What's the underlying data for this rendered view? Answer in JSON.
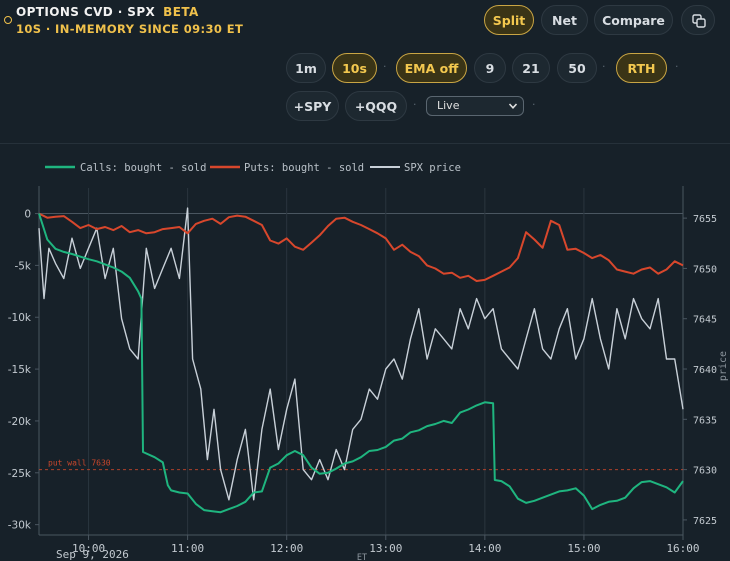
{
  "header": {
    "title": "OPTIONS CVD · SPX",
    "badge": "BETA",
    "subtitle": "10S · IN-MEMORY SINCE 09:30 ET"
  },
  "view_buttons": [
    {
      "label": "Split",
      "active": true
    },
    {
      "label": "Net",
      "active": false
    },
    {
      "label": "Compare",
      "active": false
    }
  ],
  "controls": {
    "timeframes": [
      {
        "label": "1m",
        "active": false
      },
      {
        "label": "10s",
        "active": true
      }
    ],
    "ema_toggle": {
      "label": "EMA off",
      "active": true
    },
    "ema_periods": [
      "9",
      "21",
      "50"
    ],
    "session": {
      "label": "RTH",
      "active": true
    },
    "overlays": [
      "+SPY",
      "+QQQ"
    ],
    "mode_select": {
      "value": "Live"
    }
  },
  "colors": {
    "calls": "#1fb57f",
    "puts": "#d8472c",
    "price": "#c8d0d8",
    "wall": "#c8472c",
    "accent": "#f0c14b"
  },
  "chart_data": {
    "type": "line",
    "x_ticks": [
      "10:00",
      "11:00",
      "12:00",
      "13:00",
      "14:00",
      "15:00",
      "16:00"
    ],
    "x_sublabel": "Sep 9, 2026",
    "x_unit": "ET",
    "y_left_ticks": [
      "0",
      "-5k",
      "-10k",
      "-15k",
      "-20k",
      "-25k",
      "-30k"
    ],
    "y_left_range": [
      -31000,
      1500
    ],
    "y_right_label": "price",
    "y_right_ticks": [
      "7655",
      "7650",
      "7645",
      "7640",
      "7635",
      "7630",
      "7625"
    ],
    "y_right_range": [
      7623.5,
      7657
    ],
    "annotation": {
      "label": "put wall 7630",
      "value": 7630
    },
    "series": [
      {
        "name": "Calls: bought - sold",
        "axis": "left",
        "points": [
          [
            "09:30",
            0
          ],
          [
            "09:35",
            -2500
          ],
          [
            "09:40",
            -3400
          ],
          [
            "09:45",
            -3700
          ],
          [
            "09:50",
            -3900
          ],
          [
            "10:00",
            -4400
          ],
          [
            "10:05",
            -4600
          ],
          [
            "10:10",
            -4900
          ],
          [
            "10:15",
            -5200
          ],
          [
            "10:20",
            -5600
          ],
          [
            "10:25",
            -6200
          ],
          [
            "10:30",
            -7500
          ],
          [
            "10:32",
            -8200
          ],
          [
            "10:33",
            -23000
          ],
          [
            "10:40",
            -23500
          ],
          [
            "10:45",
            -24000
          ],
          [
            "10:48",
            -26200
          ],
          [
            "10:50",
            -26700
          ],
          [
            "10:55",
            -26900
          ],
          [
            "11:00",
            -27000
          ],
          [
            "11:05",
            -28000
          ],
          [
            "11:10",
            -28600
          ],
          [
            "11:15",
            -28700
          ],
          [
            "11:20",
            -28800
          ],
          [
            "11:25",
            -28500
          ],
          [
            "11:30",
            -28200
          ],
          [
            "11:35",
            -27800
          ],
          [
            "11:40",
            -26900
          ],
          [
            "11:45",
            -26800
          ],
          [
            "11:50",
            -24500
          ],
          [
            "11:55",
            -24100
          ],
          [
            "12:00",
            -23300
          ],
          [
            "12:05",
            -22900
          ],
          [
            "12:10",
            -23300
          ],
          [
            "12:15",
            -24500
          ],
          [
            "12:20",
            -25100
          ],
          [
            "12:25",
            -25000
          ],
          [
            "12:30",
            -24600
          ],
          [
            "12:35",
            -24100
          ],
          [
            "12:40",
            -23900
          ],
          [
            "12:45",
            -23500
          ],
          [
            "12:50",
            -22900
          ],
          [
            "12:55",
            -22800
          ],
          [
            "13:00",
            -22500
          ],
          [
            "13:05",
            -21900
          ],
          [
            "13:10",
            -21700
          ],
          [
            "13:15",
            -21100
          ],
          [
            "13:20",
            -20900
          ],
          [
            "13:25",
            -20500
          ],
          [
            "13:30",
            -20300
          ],
          [
            "13:35",
            -20000
          ],
          [
            "13:40",
            -20200
          ],
          [
            "13:45",
            -19200
          ],
          [
            "13:50",
            -18900
          ],
          [
            "13:55",
            -18500
          ],
          [
            "14:00",
            -18200
          ],
          [
            "14:05",
            -18300
          ],
          [
            "14:06",
            -25700
          ],
          [
            "14:10",
            -25800
          ],
          [
            "14:15",
            -26300
          ],
          [
            "14:20",
            -27500
          ],
          [
            "14:25",
            -27900
          ],
          [
            "14:30",
            -27700
          ],
          [
            "14:35",
            -27400
          ],
          [
            "14:40",
            -27100
          ],
          [
            "14:45",
            -26800
          ],
          [
            "14:50",
            -26700
          ],
          [
            "14:55",
            -26500
          ],
          [
            "15:00",
            -27200
          ],
          [
            "15:05",
            -28500
          ],
          [
            "15:10",
            -28100
          ],
          [
            "15:15",
            -27800
          ],
          [
            "15:20",
            -27700
          ],
          [
            "15:25",
            -27400
          ],
          [
            "15:30",
            -26500
          ],
          [
            "15:35",
            -25900
          ],
          [
            "15:40",
            -25800
          ],
          [
            "15:45",
            -26100
          ],
          [
            "15:50",
            -26400
          ],
          [
            "15:55",
            -26900
          ],
          [
            "16:00",
            -25800
          ]
        ]
      },
      {
        "name": "Puts: bought - sold",
        "axis": "left",
        "points": [
          [
            "09:30",
            0
          ],
          [
            "09:35",
            -400
          ],
          [
            "09:40",
            -300
          ],
          [
            "09:45",
            -250
          ],
          [
            "09:50",
            -800
          ],
          [
            "09:55",
            -1400
          ],
          [
            "10:00",
            -1100
          ],
          [
            "10:05",
            -1500
          ],
          [
            "10:10",
            -1300
          ],
          [
            "10:15",
            -1600
          ],
          [
            "10:20",
            -1200
          ],
          [
            "10:25",
            -1800
          ],
          [
            "10:30",
            -1600
          ],
          [
            "10:35",
            -1900
          ],
          [
            "10:40",
            -1800
          ],
          [
            "10:45",
            -1500
          ],
          [
            "10:50",
            -1400
          ],
          [
            "10:55",
            -1300
          ],
          [
            "11:00",
            -1900
          ],
          [
            "11:05",
            -1000
          ],
          [
            "11:10",
            -700
          ],
          [
            "11:15",
            -500
          ],
          [
            "11:20",
            -1000
          ],
          [
            "11:25",
            -350
          ],
          [
            "11:30",
            -200
          ],
          [
            "11:35",
            -300
          ],
          [
            "11:40",
            -700
          ],
          [
            "11:45",
            -1100
          ],
          [
            "11:50",
            -2600
          ],
          [
            "11:55",
            -2900
          ],
          [
            "12:00",
            -2400
          ],
          [
            "12:05",
            -3200
          ],
          [
            "12:10",
            -3500
          ],
          [
            "12:15",
            -2800
          ],
          [
            "12:20",
            -2100
          ],
          [
            "12:25",
            -1200
          ],
          [
            "12:30",
            -500
          ],
          [
            "12:35",
            -400
          ],
          [
            "12:40",
            -800
          ],
          [
            "12:45",
            -1100
          ],
          [
            "12:50",
            -1500
          ],
          [
            "12:55",
            -1900
          ],
          [
            "13:00",
            -2400
          ],
          [
            "13:05",
            -3500
          ],
          [
            "13:10",
            -3000
          ],
          [
            "13:15",
            -3700
          ],
          [
            "13:20",
            -4100
          ],
          [
            "13:25",
            -5000
          ],
          [
            "13:30",
            -5300
          ],
          [
            "13:35",
            -5800
          ],
          [
            "13:40",
            -5700
          ],
          [
            "13:45",
            -6200
          ],
          [
            "13:50",
            -6000
          ],
          [
            "13:55",
            -6500
          ],
          [
            "14:00",
            -6400
          ],
          [
            "14:05",
            -6000
          ],
          [
            "14:10",
            -5600
          ],
          [
            "14:15",
            -5200
          ],
          [
            "14:20",
            -4300
          ],
          [
            "14:25",
            -1800
          ],
          [
            "14:30",
            -2500
          ],
          [
            "14:35",
            -3300
          ],
          [
            "14:40",
            -700
          ],
          [
            "14:45",
            -1100
          ],
          [
            "14:50",
            -3500
          ],
          [
            "14:55",
            -3400
          ],
          [
            "15:00",
            -3800
          ],
          [
            "15:05",
            -4300
          ],
          [
            "15:10",
            -4000
          ],
          [
            "15:15",
            -4500
          ],
          [
            "15:20",
            -5400
          ],
          [
            "15:25",
            -5600
          ],
          [
            "15:30",
            -5800
          ],
          [
            "15:35",
            -5400
          ],
          [
            "15:40",
            -5200
          ],
          [
            "15:45",
            -5800
          ],
          [
            "15:50",
            -5400
          ],
          [
            "15:55",
            -4600
          ],
          [
            "16:00",
            -5000
          ]
        ]
      },
      {
        "name": "SPX price",
        "axis": "right",
        "points": [
          [
            "09:30",
            7654
          ],
          [
            "09:33",
            7647
          ],
          [
            "09:36",
            7652
          ],
          [
            "09:40",
            7650.5
          ],
          [
            "09:45",
            7649
          ],
          [
            "09:50",
            7653
          ],
          [
            "09:55",
            7650
          ],
          [
            "10:00",
            7652
          ],
          [
            "10:05",
            7654
          ],
          [
            "10:10",
            7649
          ],
          [
            "10:15",
            7652
          ],
          [
            "10:20",
            7645
          ],
          [
            "10:25",
            7642
          ],
          [
            "10:30",
            7641
          ],
          [
            "10:35",
            7652
          ],
          [
            "10:40",
            7648
          ],
          [
            "10:45",
            7650
          ],
          [
            "10:50",
            7652
          ],
          [
            "10:55",
            7649
          ],
          [
            "11:00",
            7656
          ],
          [
            "11:03",
            7641
          ],
          [
            "11:08",
            7638
          ],
          [
            "11:12",
            7631
          ],
          [
            "11:16",
            7636
          ],
          [
            "11:20",
            7630
          ],
          [
            "11:25",
            7627
          ],
          [
            "11:30",
            7631
          ],
          [
            "11:35",
            7634
          ],
          [
            "11:40",
            7627
          ],
          [
            "11:45",
            7634
          ],
          [
            "11:50",
            7638
          ],
          [
            "11:55",
            7632
          ],
          [
            "12:00",
            7636
          ],
          [
            "12:05",
            7639
          ],
          [
            "12:10",
            7630
          ],
          [
            "12:15",
            7629
          ],
          [
            "12:20",
            7631
          ],
          [
            "12:25",
            7629
          ],
          [
            "12:30",
            7632
          ],
          [
            "12:35",
            7630
          ],
          [
            "12:40",
            7634
          ],
          [
            "12:45",
            7635
          ],
          [
            "12:50",
            7638
          ],
          [
            "12:55",
            7637
          ],
          [
            "13:00",
            7640
          ],
          [
            "13:05",
            7641
          ],
          [
            "13:10",
            7639
          ],
          [
            "13:15",
            7643
          ],
          [
            "13:20",
            7646
          ],
          [
            "13:25",
            7641
          ],
          [
            "13:30",
            7644
          ],
          [
            "13:35",
            7643
          ],
          [
            "13:40",
            7642
          ],
          [
            "13:45",
            7646
          ],
          [
            "13:50",
            7644
          ],
          [
            "13:55",
            7647
          ],
          [
            "14:00",
            7645
          ],
          [
            "14:05",
            7646
          ],
          [
            "14:10",
            7642
          ],
          [
            "14:15",
            7641
          ],
          [
            "14:20",
            7640
          ],
          [
            "14:25",
            7643
          ],
          [
            "14:30",
            7646
          ],
          [
            "14:35",
            7642
          ],
          [
            "14:40",
            7641
          ],
          [
            "14:45",
            7644
          ],
          [
            "14:50",
            7646
          ],
          [
            "14:55",
            7641
          ],
          [
            "15:00",
            7643
          ],
          [
            "15:05",
            7647
          ],
          [
            "15:10",
            7643
          ],
          [
            "15:15",
            7640
          ],
          [
            "15:20",
            7646
          ],
          [
            "15:25",
            7643
          ],
          [
            "15:30",
            7647
          ],
          [
            "15:35",
            7645
          ],
          [
            "15:40",
            7644
          ],
          [
            "15:45",
            7647
          ],
          [
            "15:50",
            7641
          ],
          [
            "15:55",
            7641
          ],
          [
            "15:58",
            7638
          ],
          [
            "16:00",
            7636
          ]
        ]
      }
    ]
  }
}
